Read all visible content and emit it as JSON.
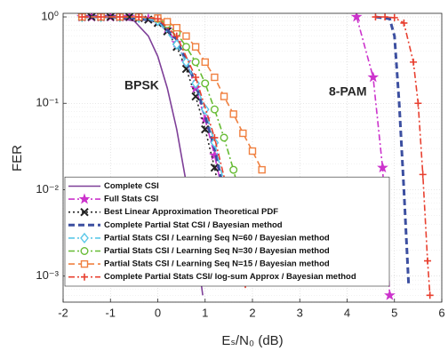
{
  "chart_data": {
    "type": "line",
    "xlabel": "Eₛ/N₀ (dB)",
    "ylabel": "FER",
    "annotations": [
      "BPSK",
      "8-PAM"
    ],
    "xlim": [
      -2,
      6
    ],
    "xticks": [
      -2,
      -1,
      0,
      1,
      2,
      3,
      4,
      5,
      6
    ],
    "ylim": [
      0.0005,
      1.1
    ],
    "log_y": true,
    "yticks": [
      {
        "value": 0.001,
        "label": "10⁻³"
      },
      {
        "value": 0.01,
        "label": "10⁻²"
      },
      {
        "value": 0.1,
        "label": "10⁻¹"
      },
      {
        "value": 1,
        "label": "10⁰"
      }
    ],
    "grid": true,
    "legend": "lower left",
    "series": [
      {
        "name": "Complete CSI",
        "color": "#7e3f98",
        "linestyle": "solid",
        "marker": "none",
        "x": [
          -1.6,
          -1,
          -0.5,
          -0.2,
          0,
          0.2,
          0.4,
          0.6,
          0.8,
          0.95
        ],
        "values": [
          1,
          0.99,
          0.9,
          0.6,
          0.35,
          0.15,
          0.05,
          0.012,
          0.0025,
          0.0006
        ]
      },
      {
        "name": "Full Stats CSI",
        "color": "#cc33cc",
        "linestyle": "dashdot",
        "marker": "star",
        "x": [
          -1.6,
          -1.4,
          -1.2,
          -1,
          -0.8,
          -0.6,
          -0.4,
          -0.2,
          0,
          0.2,
          0.4,
          0.6,
          0.8,
          1,
          1.2,
          1.4,
          1.6,
          null,
          4.2,
          4.55,
          4.75,
          4.9
        ],
        "values": [
          1,
          1,
          1,
          1,
          1,
          1,
          0.98,
          0.95,
          0.88,
          0.72,
          0.5,
          0.3,
          0.15,
          0.065,
          0.025,
          0.008,
          0.002,
          null,
          1,
          0.2,
          0.018,
          0.0006
        ]
      },
      {
        "name": "Best Linear Approximation Theoretical PDF",
        "color": "#222222",
        "linestyle": "dotted",
        "marker": "x",
        "x": [
          -1.6,
          -1.4,
          -1.2,
          -1,
          -0.8,
          -0.6,
          -0.4,
          -0.2,
          0,
          0.2,
          0.4,
          0.6,
          0.8,
          1,
          1.2,
          1.4,
          1.55
        ],
        "values": [
          1,
          1,
          1,
          1,
          1,
          1,
          0.97,
          0.93,
          0.85,
          0.68,
          0.45,
          0.25,
          0.12,
          0.05,
          0.018,
          0.005,
          0.0015
        ]
      },
      {
        "name": "Complete Partial Stat CSI / Bayesian method",
        "color": "#3c4fa0",
        "linestyle": "dashed",
        "marker": "none",
        "x": [
          -1.6,
          -0.8,
          0,
          0.4,
          0.8,
          1.2,
          1.6,
          1.8,
          null,
          4.6,
          4.9,
          5,
          5.1,
          5.2,
          5.3
        ],
        "values": [
          1,
          1,
          0.9,
          0.55,
          0.17,
          0.03,
          0.003,
          0.0008,
          null,
          1,
          0.95,
          0.6,
          0.1,
          0.01,
          0.0008
        ]
      },
      {
        "name": "Partial Stats CSI / Learning Seq N=60 / Bayesian method",
        "color": "#5bc8e8",
        "linestyle": "dashdot",
        "marker": "diamond",
        "x": [
          -1.6,
          -1.2,
          -0.8,
          -0.4,
          0,
          0.4,
          0.6,
          0.8,
          1,
          1.2,
          1.4,
          1.6,
          1.8
        ],
        "values": [
          1,
          1,
          1,
          0.98,
          0.9,
          0.48,
          0.3,
          0.17,
          0.085,
          0.035,
          0.012,
          0.004,
          0.0013
        ]
      },
      {
        "name": "Partial Stats CSI / Learning Seq N=30 / Bayesian method",
        "color": "#66bb33",
        "linestyle": "dashdot",
        "marker": "circle",
        "x": [
          -1.6,
          -1.2,
          -0.8,
          -0.4,
          0,
          0.2,
          0.4,
          0.6,
          0.8,
          1,
          1.2,
          1.4,
          1.6,
          1.8,
          2
        ],
        "values": [
          1,
          1,
          1,
          1,
          0.95,
          0.82,
          0.65,
          0.45,
          0.3,
          0.17,
          0.085,
          0.04,
          0.017,
          0.006,
          0.002
        ]
      },
      {
        "name": "Partial Stats CSI / Learning Seq N=15 / Bayesian method",
        "color": "#f08040",
        "linestyle": "dashed",
        "marker": "square",
        "x": [
          -1.6,
          -1.2,
          -0.8,
          -0.4,
          0,
          0.2,
          0.4,
          0.6,
          0.8,
          1,
          1.2,
          1.4,
          1.6,
          1.8,
          2,
          2.2
        ],
        "values": [
          1,
          1,
          1,
          1,
          0.97,
          0.88,
          0.75,
          0.6,
          0.45,
          0.3,
          0.2,
          0.12,
          0.075,
          0.045,
          0.028,
          0.017
        ]
      },
      {
        "name": "Complete Partial Stats CSI/ log-sum Approx / Bayesian method",
        "color": "#e84030",
        "linestyle": "dashdot",
        "marker": "plus",
        "x": [
          -1.6,
          -1.2,
          -0.8,
          -0.4,
          0,
          0.4,
          0.8,
          1.2,
          1.6,
          1.85,
          null,
          4.6,
          4.8,
          5,
          5.2,
          5.4,
          5.5,
          5.6,
          5.7,
          5.75
        ],
        "values": [
          1,
          1,
          1,
          1,
          0.95,
          0.6,
          0.2,
          0.04,
          0.005,
          0.0008,
          null,
          1,
          1,
          0.98,
          0.85,
          0.3,
          0.1,
          0.015,
          0.0015,
          0.0006
        ]
      }
    ]
  }
}
